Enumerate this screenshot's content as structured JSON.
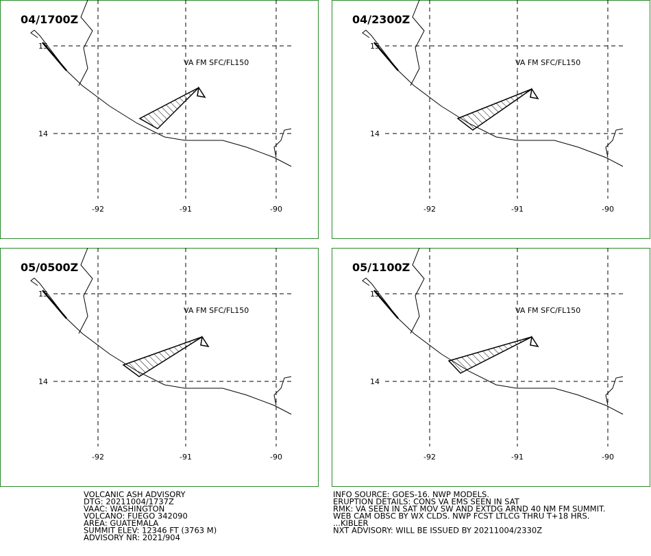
{
  "panels": [
    {
      "time": "04/1700Z",
      "label": "VA FM SFC/FL150"
    },
    {
      "time": "04/2300Z",
      "label": "VA FM SFC/FL150"
    },
    {
      "time": "05/0500Z",
      "label": "VA FM SFC/FL150"
    },
    {
      "time": "05/1100Z",
      "label": "VA FM SFC/FL150"
    }
  ],
  "grid": {
    "lat_labels": [
      "15",
      "14"
    ],
    "lon_labels": [
      "-92",
      "-91",
      "-90"
    ]
  },
  "left_text": [
    "VOLCANIC ASH ADVISORY",
    "DTG: 20211004/1737Z",
    "VAAC: WASHINGTON",
    "VOLCANO: FUEGO 342090",
    "AREA: GUATEMALA",
    "SUMMIT ELEV: 12346 FT (3763 M)",
    "ADVISORY NR: 2021/904"
  ],
  "right_text": [
    "INFO SOURCE: GOES-16. NWP MODELS.",
    "ERUPTION DETAILS: CONS VA EMS SEEN IN SAT",
    "RMK: VA SEEN IN SAT MOV SW AND EXTDG ARND 40 NM FM SUMMIT.",
    "WEB CAM OBSC BY WX CLDS. NWP FCST LTLCG THRU T+18 HRS.",
    "...KIBLER",
    "NXT ADVISORY: WILL BE ISSUED BY 20211004/2330Z"
  ]
}
